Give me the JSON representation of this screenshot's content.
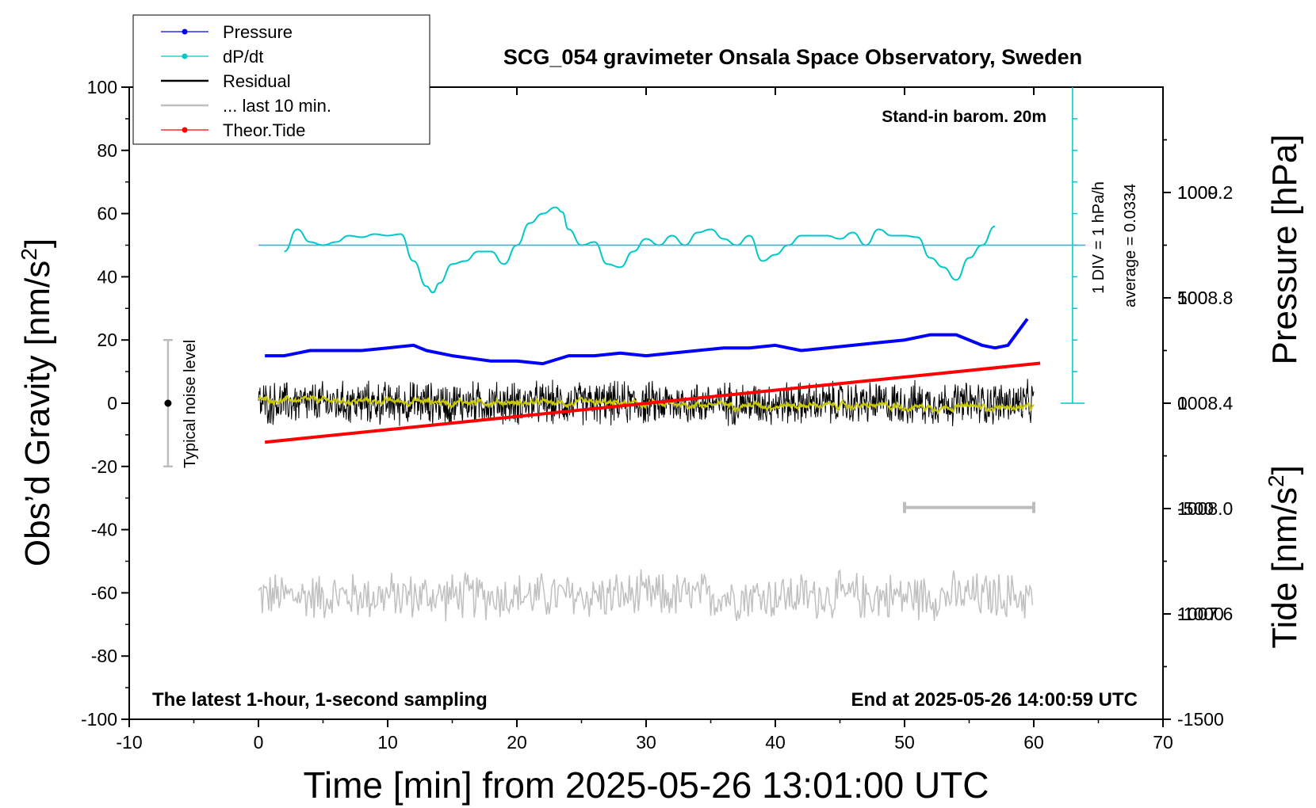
{
  "chart_data": {
    "type": "line",
    "title": "SCG_054 gravimeter Onsala Space Observatory, Sweden",
    "xlabel": "Time [min] from 2025-05-26 13:01:00 UTC",
    "ylabel_left": "Obs’d Gravity [nm/s",
    "ylabel_right_top": "Pressure [hPa]",
    "ylabel_right_bottom": "Tide [nm/s",
    "unit_superscript": "2",
    "xlim": [
      -10,
      70
    ],
    "ylim": [
      -100,
      100
    ],
    "pressure_lim": [
      1007.2,
      1009.6
    ],
    "tide_lim": [
      -1500,
      1500
    ],
    "x_ticks": [
      "-10",
      "0",
      "10",
      "20",
      "30",
      "40",
      "50",
      "60",
      "70"
    ],
    "y_ticks": [
      "100",
      "80",
      "60",
      "40",
      "20",
      "0",
      "-20",
      "-40",
      "-60",
      "-80",
      "-100"
    ],
    "pressure_ticks": [
      "1009.2",
      "1008.8",
      "1008.4",
      "1008.0",
      "1007.6"
    ],
    "tide_ticks": [
      "1000",
      "500",
      "0",
      "-500",
      "-1000",
      "-1500"
    ],
    "annotations": {
      "stand_in": "Stand-in barom. 20m",
      "div_label": "1 DIV = 1 hPa/h",
      "average_label": "average = 0.0334",
      "noise_label": "Typical noise level",
      "latest": "The latest 1-hour, 1-second sampling",
      "end_at": "End at 2025-05-26 14:00:59 UTC"
    },
    "legend": {
      "placement": "top-left",
      "entries": [
        {
          "label": "Pressure",
          "color": "#0000ff",
          "marker": true
        },
        {
          "label": "dP/dt",
          "color": "#00c8c8",
          "marker": true
        },
        {
          "label": "Residual",
          "color": "#000000",
          "marker": false
        },
        {
          "label": "... last 10 min.",
          "color": "#c0c0c0",
          "marker": false
        },
        {
          "label": "Theor.Tide",
          "color": "#ff0000",
          "marker": true
        }
      ]
    },
    "series": [
      {
        "name": "Pressure",
        "color": "#0000ff",
        "x": [
          0.5,
          2,
          4,
          6,
          8,
          10,
          12,
          13,
          15,
          18,
          20,
          22,
          24,
          26,
          28,
          30,
          32,
          34,
          36,
          38,
          40,
          42,
          44,
          46,
          48,
          50,
          52,
          54,
          56,
          57,
          58,
          59.5
        ],
        "y": [
          1008.58,
          1008.58,
          1008.6,
          1008.6,
          1008.6,
          1008.61,
          1008.62,
          1008.6,
          1008.58,
          1008.56,
          1008.56,
          1008.55,
          1008.58,
          1008.58,
          1008.59,
          1008.58,
          1008.59,
          1008.6,
          1008.61,
          1008.61,
          1008.62,
          1008.6,
          1008.61,
          1008.62,
          1008.63,
          1008.64,
          1008.66,
          1008.66,
          1008.62,
          1008.61,
          1008.62,
          1008.72
        ]
      },
      {
        "name": "dP/dt",
        "color": "#00c8c8",
        "x": [
          2,
          3,
          4,
          5,
          6,
          7,
          8,
          9,
          10,
          11,
          12,
          13,
          13.5,
          14,
          15,
          16,
          17,
          18,
          19,
          20,
          21,
          22,
          23,
          23.5,
          24,
          25,
          26,
          27,
          28,
          29,
          30,
          31,
          32,
          33,
          34,
          35,
          36,
          37,
          38,
          39,
          40,
          41,
          42,
          43,
          44,
          45,
          46,
          47,
          48,
          49,
          50,
          51,
          52,
          53,
          54,
          55,
          56,
          57
        ],
        "y": [
          -0.2,
          0.5,
          0.1,
          0.0,
          0.1,
          0.3,
          0.25,
          0.35,
          0.3,
          0.35,
          -0.5,
          -1.3,
          -1.5,
          -1.2,
          -0.6,
          -0.5,
          -0.2,
          -0.2,
          -0.6,
          0.0,
          0.7,
          1.0,
          1.2,
          1.05,
          0.5,
          0.0,
          0.1,
          -0.6,
          -0.7,
          -0.2,
          0.2,
          0.0,
          0.3,
          0.0,
          0.4,
          0.5,
          0.2,
          0.0,
          0.3,
          -0.5,
          -0.3,
          0.0,
          0.3,
          0.3,
          0.3,
          0.2,
          0.4,
          0.0,
          0.5,
          0.3,
          0.3,
          0.25,
          -0.4,
          -0.7,
          -1.1,
          -0.4,
          0.0,
          0.6
        ]
      },
      {
        "name": "Theor.Tide",
        "color": "#ff0000",
        "x": [
          0.5,
          60.5
        ],
        "y": [
          -185,
          190
        ]
      }
    ],
    "residual_summary": {
      "x_start": 0,
      "x_end": 60,
      "center": 0,
      "amplitude": 8,
      "smoothed_color": "#c8c800"
    },
    "last_10_min_summary": {
      "x_start": 0,
      "x_end": 60,
      "center": -61,
      "amplitude": 8,
      "color": "#c0c0c0"
    },
    "noise_bar": {
      "x": -7,
      "center": 0,
      "half_range": 20
    },
    "scale_bar_10min": {
      "x_start": 50,
      "x_end": 60,
      "y": -33
    },
    "dpdt_baseline_y": 50,
    "dpdt_axis_x": 63
  }
}
